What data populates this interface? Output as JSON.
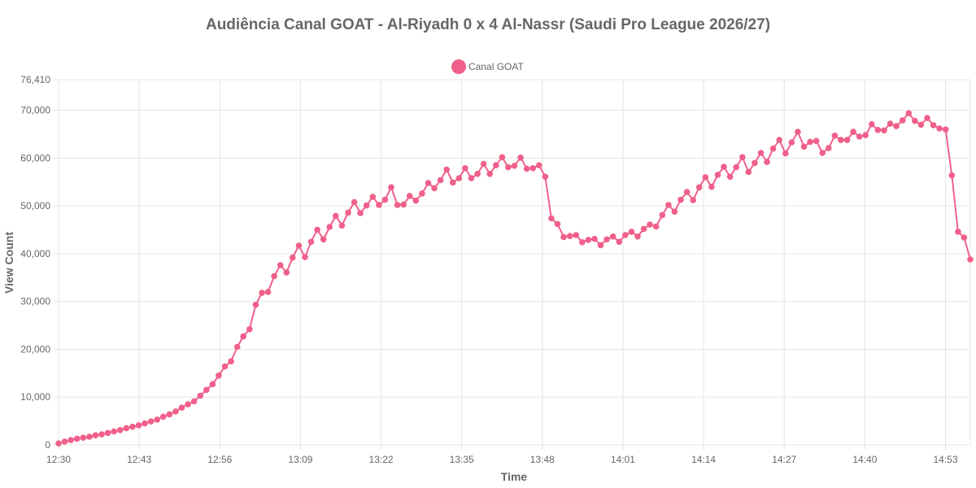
{
  "chart_data": {
    "type": "line",
    "title": "Audiência Canal GOAT - Al-Riyadh 0 x 4 Al-Nassr (Saudi Pro League 2026/27)",
    "xlabel": "Time",
    "ylabel": "View Count",
    "x_tick_labels": [
      "12:30",
      "12:43",
      "12:56",
      "13:09",
      "13:22",
      "13:35",
      "13:48",
      "14:01",
      "14:14",
      "14:27",
      "14:40",
      "14:53"
    ],
    "y_tick_labels": [
      "0",
      "10,000",
      "20,000",
      "30,000",
      "40,000",
      "50,000",
      "60,000",
      "70,000",
      "76,410"
    ],
    "y_ticks": [
      0,
      10000,
      20000,
      30000,
      40000,
      50000,
      60000,
      70000,
      76410
    ],
    "ylim": [
      0,
      76410
    ],
    "x_start": "12:30",
    "x_end": "14:57",
    "grid": true,
    "legend_position": "top",
    "color": "#f0608a",
    "series": [
      {
        "name": "Canal GOAT",
        "values": [
          300,
          700,
          1000,
          1300,
          1500,
          1700,
          2000,
          2200,
          2500,
          2800,
          3100,
          3500,
          3800,
          4100,
          4500,
          4900,
          5300,
          5900,
          6400,
          7000,
          7800,
          8500,
          9100,
          10300,
          11500,
          12700,
          14500,
          16400,
          17500,
          20500,
          22700,
          24200,
          29300,
          31800,
          32000,
          35300,
          37600,
          36100,
          39200,
          41700,
          39300,
          42500,
          45000,
          43000,
          45600,
          47900,
          45900,
          48600,
          50800,
          48500,
          50100,
          51900,
          50200,
          51300,
          53900,
          50200,
          50300,
          52100,
          51100,
          52600,
          54800,
          53700,
          55400,
          57600,
          54900,
          55800,
          57900,
          55800,
          56700,
          58800,
          56700,
          58500,
          60200,
          58100,
          58400,
          60100,
          57800,
          57900,
          58500,
          56100,
          47400,
          46200,
          43500,
          43700,
          43900,
          42400,
          42900,
          43100,
          41800,
          43000,
          43600,
          42500,
          43900,
          44600,
          43600,
          45200,
          46100,
          45700,
          48100,
          50200,
          48800,
          51300,
          52900,
          51200,
          53900,
          56000,
          54000,
          56500,
          58200,
          56100,
          58100,
          60200,
          57100,
          59000,
          61100,
          59200,
          62000,
          63800,
          61000,
          63300,
          65500,
          62400,
          63400,
          63600,
          61100,
          62100,
          64700,
          63800,
          63800,
          65500,
          64500,
          64800,
          67100,
          65900,
          65800,
          67200,
          66700,
          67900,
          69400,
          67800,
          67000,
          68400,
          66900,
          66200,
          66000,
          56400,
          44600,
          43400,
          38800
        ]
      }
    ]
  }
}
